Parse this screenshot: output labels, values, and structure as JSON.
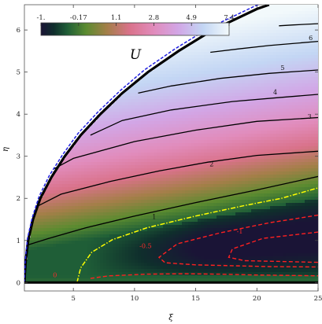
{
  "chart_data": {
    "type": "heatmap",
    "title": "",
    "xlabel": "ξ",
    "ylabel": "η",
    "xlim": [
      1,
      25
    ],
    "ylim": [
      -0.2,
      6.6
    ],
    "x_ticks": [
      5,
      10,
      15,
      20,
      25
    ],
    "y_ticks": [
      0,
      1,
      2,
      3,
      4,
      5,
      6
    ],
    "colorbar": {
      "symbol": "U",
      "range": [
        -1.0,
        7.4
      ],
      "tick_labels": [
        "-1.",
        "-0.17",
        "1.1",
        "2.8",
        "4.9",
        "7.4"
      ],
      "tick_values": [
        -1.0,
        -0.17,
        1.1,
        2.8,
        4.9,
        7.4
      ],
      "placement": "top-left"
    },
    "boundary_solid": [
      [
        1,
        0
      ],
      [
        1.03,
        0.2
      ],
      [
        1.1,
        0.5
      ],
      [
        1.3,
        1.0
      ],
      [
        1.7,
        1.5
      ],
      [
        2.3,
        2.0
      ],
      [
        3.2,
        2.5
      ],
      [
        4.3,
        3.0
      ],
      [
        5.6,
        3.5
      ],
      [
        7.2,
        4.0
      ],
      [
        9.0,
        4.5
      ],
      [
        11.1,
        5.0
      ],
      [
        13.6,
        5.5
      ],
      [
        16.4,
        6.0
      ],
      [
        20.0,
        6.5
      ],
      [
        21,
        6.6
      ]
    ],
    "boundary_dashed": [
      [
        1,
        0
      ],
      [
        1.03,
        0.25
      ],
      [
        1.08,
        0.55
      ],
      [
        1.25,
        1.05
      ],
      [
        1.65,
        1.55
      ],
      [
        2.2,
        2.05
      ],
      [
        3.05,
        2.55
      ],
      [
        4.15,
        3.05
      ],
      [
        5.4,
        3.55
      ],
      [
        7.0,
        4.05
      ],
      [
        8.8,
        4.55
      ],
      [
        10.8,
        5.05
      ],
      [
        13.3,
        5.55
      ],
      [
        16.1,
        6.05
      ],
      [
        19.7,
        6.55
      ],
      [
        20.5,
        6.65
      ]
    ],
    "contours_solid": [
      {
        "label": "1",
        "label_at": [
          11.6,
          1.57
        ],
        "points": [
          [
            1.35,
            0.9
          ],
          [
            3,
            1.05
          ],
          [
            6,
            1.3
          ],
          [
            10,
            1.58
          ],
          [
            15,
            1.9
          ],
          [
            20,
            2.2
          ],
          [
            25,
            2.52
          ]
        ]
      },
      {
        "label": "2",
        "label_at": [
          16.3,
          2.82
        ],
        "points": [
          [
            2.1,
            1.82
          ],
          [
            4,
            2.1
          ],
          [
            8,
            2.4
          ],
          [
            12,
            2.65
          ],
          [
            16,
            2.86
          ],
          [
            20,
            3.02
          ],
          [
            25,
            3.12
          ]
        ]
      },
      {
        "label": "3",
        "label_at": [
          24.3,
          3.95
        ],
        "points": [
          [
            3.4,
            2.7
          ],
          [
            5,
            2.95
          ],
          [
            10,
            3.35
          ],
          [
            15,
            3.62
          ],
          [
            20,
            3.83
          ],
          [
            25,
            3.92
          ]
        ]
      },
      {
        "label": "4",
        "label_at": [
          21.5,
          4.53
        ],
        "points": [
          [
            6.4,
            3.5
          ],
          [
            9,
            3.85
          ],
          [
            13,
            4.1
          ],
          [
            18,
            4.3
          ],
          [
            22,
            4.4
          ],
          [
            25,
            4.47
          ]
        ]
      },
      {
        "label": "5",
        "label_at": [
          22.1,
          5.11
        ],
        "points": [
          [
            10.3,
            4.5
          ],
          [
            13,
            4.67
          ],
          [
            17,
            4.85
          ],
          [
            21,
            4.97
          ],
          [
            25,
            5.05
          ]
        ]
      },
      {
        "label": "6",
        "label_at": [
          24.4,
          5.82
        ],
        "points": [
          [
            16.2,
            5.47
          ],
          [
            18.5,
            5.55
          ],
          [
            21,
            5.63
          ],
          [
            25,
            5.73
          ]
        ]
      },
      {
        "label": "",
        "label_at": null,
        "points": [
          [
            21.8,
            6.1
          ],
          [
            23,
            6.12
          ],
          [
            25,
            6.15
          ]
        ]
      }
    ],
    "contour_zero": {
      "label": "0",
      "label_at": [
        3.5,
        0.18
      ],
      "color": "#ffff00",
      "points": [
        [
          5.3,
          0.0
        ],
        [
          5.6,
          0.35
        ],
        [
          6.5,
          0.72
        ],
        [
          8.2,
          1.02
        ],
        [
          11,
          1.3
        ],
        [
          15,
          1.58
        ],
        [
          19,
          1.83
        ],
        [
          22,
          2.0
        ],
        [
          25,
          2.25
        ]
      ]
    },
    "contours_dashed": [
      {
        "label": "",
        "label_at": null,
        "points": [
          [
            6.4,
            0.1
          ],
          [
            8,
            0.16
          ],
          [
            11,
            0.2
          ],
          [
            14,
            0.21
          ],
          [
            17,
            0.2
          ],
          [
            20,
            0.18
          ],
          [
            25,
            0.16
          ]
        ]
      },
      {
        "label": "-0.5",
        "label_at": [
          10.9,
          0.87
        ],
        "points": [
          [
            25,
            1.6
          ],
          [
            21,
            1.42
          ],
          [
            17,
            1.18
          ],
          [
            13.5,
            0.92
          ],
          [
            12,
            0.6
          ],
          [
            12.5,
            0.47
          ],
          [
            15,
            0.42
          ],
          [
            18,
            0.4
          ],
          [
            21,
            0.38
          ],
          [
            25,
            0.37
          ]
        ]
      },
      {
        "label": "-1",
        "label_at": [
          18.6,
          1.22
        ],
        "points": [
          [
            25,
            1.2
          ],
          [
            20.5,
            1.05
          ],
          [
            18,
            0.8
          ],
          [
            17.7,
            0.6
          ],
          [
            19,
            0.52
          ],
          [
            22,
            0.5
          ],
          [
            25,
            0.48
          ]
        ]
      }
    ]
  }
}
